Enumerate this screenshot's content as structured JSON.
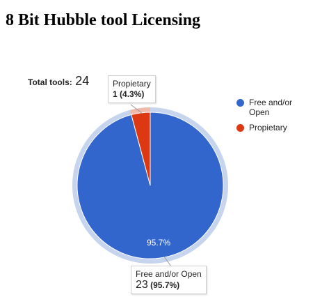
{
  "page": {
    "title": "8 Bit Hubble tool Licensing"
  },
  "total": {
    "label": "Total tools:",
    "value": "24"
  },
  "colors": {
    "free_open": "#3366cc",
    "proprietary": "#dc3912",
    "outer_ring": "#c6d4ee",
    "proprietary_ring": "#f1b9a9"
  },
  "chart_data": {
    "type": "pie",
    "title": "",
    "total": 24,
    "slices": [
      {
        "label": "Free and/or Open",
        "value": 23,
        "percent": 95.7,
        "color": "#3366cc"
      },
      {
        "label": "Propietary",
        "value": 1,
        "percent": 4.3,
        "color": "#dc3912"
      }
    ],
    "slice_label": "95.7%",
    "legend": {
      "position": "right",
      "items": [
        {
          "label": "Free and/or\nOpen",
          "color": "#3366cc"
        },
        {
          "label": "Propietary",
          "color": "#dc3912"
        }
      ]
    },
    "tooltips": {
      "proprietary": {
        "title": "Propietary",
        "value": "1",
        "percent": "(4.3%)"
      },
      "free_open": {
        "title": "Free and/or Open",
        "value": "23",
        "percent": "(95.7%)"
      }
    }
  }
}
